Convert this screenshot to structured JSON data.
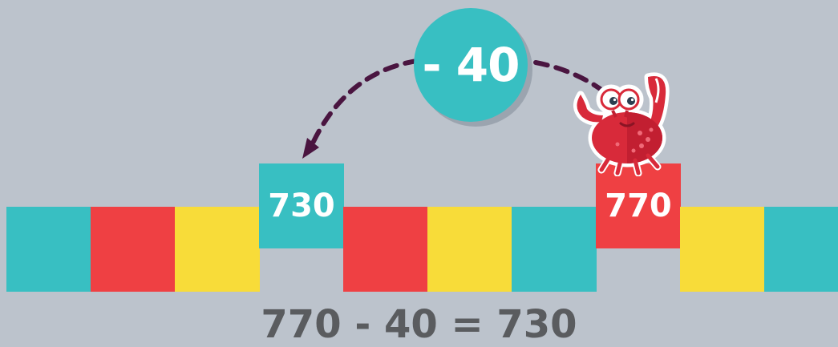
{
  "tiles": [
    {
      "color": "#38bfc2"
    },
    {
      "color": "#ef4043"
    },
    {
      "color": "#f8dc39"
    },
    {
      "color": "#38bfc2",
      "label": "730"
    },
    {
      "color": "#ef4043"
    },
    {
      "color": "#f8dc39"
    },
    {
      "color": "#38bfc2"
    },
    {
      "color": "#ef4043",
      "label": "770"
    },
    {
      "color": "#f8dc39"
    },
    {
      "color": "#38bfc2"
    }
  ],
  "jump": {
    "label": "- 40",
    "color": "#38bfc2",
    "arc_color": "#4a1540"
  },
  "equation": "770 - 40 = 730",
  "icons": [
    "crab-icon",
    "dashed-arrow-icon"
  ]
}
